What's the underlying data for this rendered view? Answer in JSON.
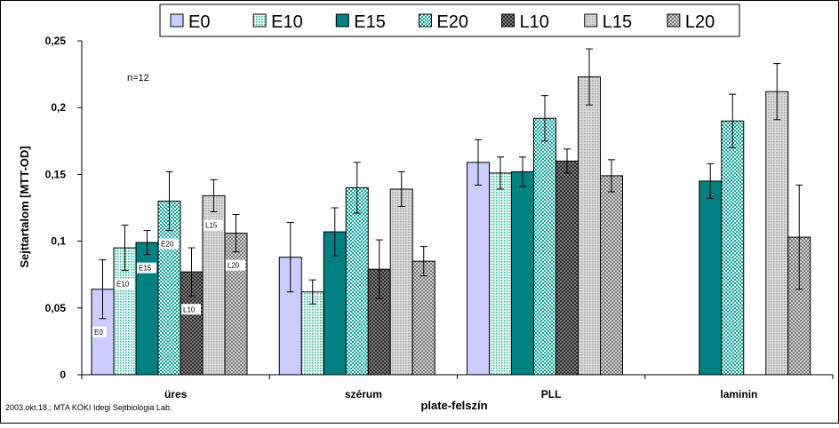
{
  "chart_data": {
    "type": "bar",
    "title": "",
    "xlabel": "plate-felszín",
    "ylabel": "Sejttartalom [MTT-OD]",
    "ylim": [
      0,
      0.25
    ],
    "yticks": [
      0,
      0.05,
      0.1,
      0.15,
      0.2,
      0.25
    ],
    "ytick_labels": [
      "0",
      "0,05",
      "0,1",
      "0,15",
      "0,2",
      "0,25"
    ],
    "grid": false,
    "legend_position": "top",
    "categories": [
      "üres",
      "szérum",
      "PLL",
      "laminin"
    ],
    "series": [
      {
        "name": "E0",
        "pattern": "solid",
        "color": "#ccccff",
        "values": [
          0.064,
          0.088,
          0.159,
          null
        ],
        "errors": [
          0.022,
          0.026,
          0.017,
          null
        ]
      },
      {
        "name": "E10",
        "pattern": "dots-light",
        "color": "#9fd6d0",
        "values": [
          0.095,
          0.062,
          0.151,
          null
        ],
        "errors": [
          0.017,
          0.009,
          0.012,
          null
        ]
      },
      {
        "name": "E15",
        "pattern": "solid",
        "color": "#008080",
        "values": [
          0.099,
          0.107,
          0.152,
          0.145
        ],
        "errors": [
          0.009,
          0.018,
          0.011,
          0.013
        ]
      },
      {
        "name": "E20",
        "pattern": "checker",
        "color": "#00b3a8",
        "values": [
          0.13,
          0.14,
          0.192,
          0.19
        ],
        "errors": [
          0.022,
          0.019,
          0.017,
          0.02
        ]
      },
      {
        "name": "L10",
        "pattern": "checker",
        "color": "#555555",
        "values": [
          0.077,
          0.079,
          0.16,
          null
        ],
        "errors": [
          0.018,
          0.022,
          0.009,
          null
        ]
      },
      {
        "name": "L15",
        "pattern": "dots-light",
        "color": "#bdbdbd",
        "values": [
          0.134,
          0.139,
          0.223,
          0.212
        ],
        "errors": [
          0.012,
          0.013,
          0.021,
          0.021
        ]
      },
      {
        "name": "L20",
        "pattern": "checker",
        "color": "#8a8a8a",
        "values": [
          0.106,
          0.085,
          0.149,
          0.103
        ],
        "errors": [
          0.014,
          0.011,
          0.012,
          0.039
        ]
      }
    ],
    "bar_labels_category": "üres",
    "annotations": [
      "n=12"
    ]
  },
  "footer": "2003.okt.18.; MTA KOKI Idegi Sejtbiológia Lab."
}
